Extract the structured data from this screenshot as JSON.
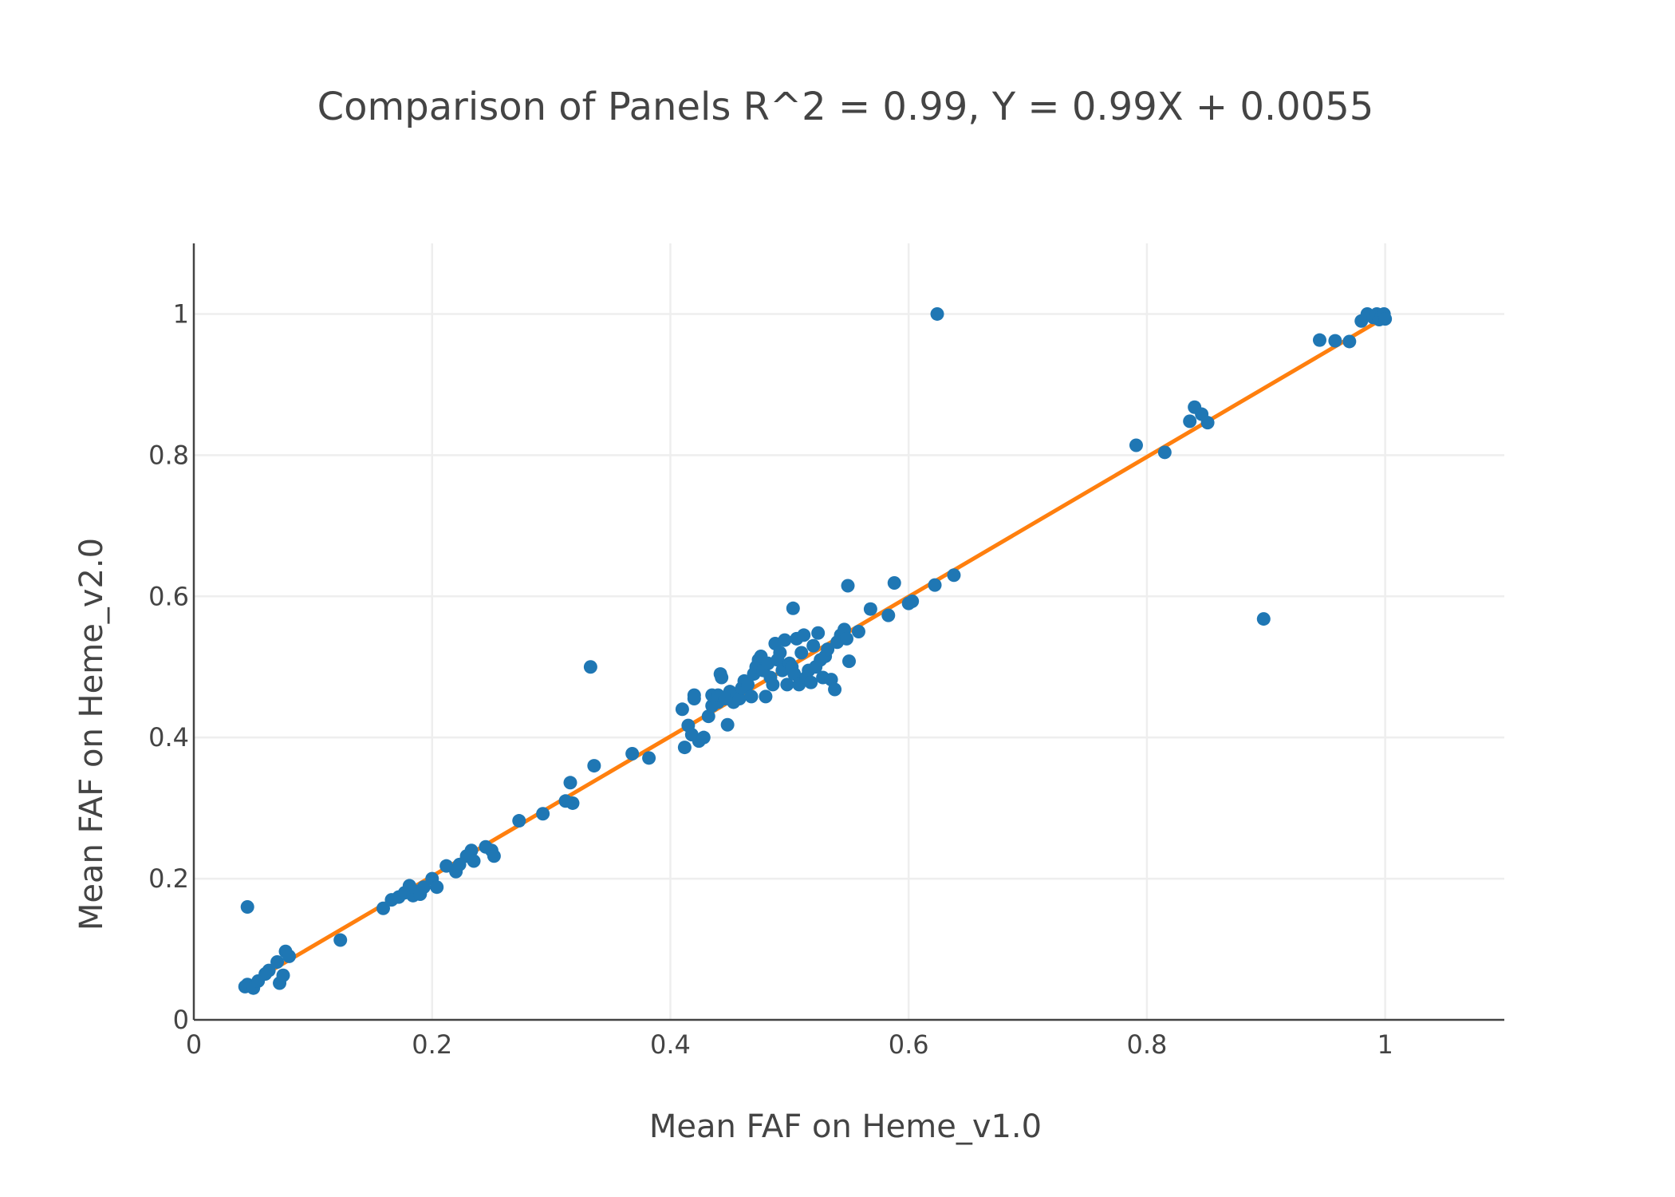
{
  "chart_data": {
    "type": "scatter",
    "title": "Comparison of Panels R^2 = 0.99, Y = 0.99X + 0.0055",
    "xlabel": "Mean FAF on Heme_v1.0",
    "ylabel": "Mean FAF on Heme_v2.0",
    "xlim": [
      0,
      1.1
    ],
    "ylim": [
      0,
      1.1
    ],
    "xticks": [
      0,
      0.2,
      0.4,
      0.6,
      0.8,
      1
    ],
    "yticks": [
      0,
      0.2,
      0.4,
      0.6,
      0.8,
      1
    ],
    "x_tick_labels": [
      "0",
      "0.2",
      "0.4",
      "0.6",
      "0.8",
      "1"
    ],
    "y_tick_labels": [
      "0",
      "0.2",
      "0.4",
      "0.6",
      "0.8",
      "1"
    ],
    "grid": true,
    "legend": "none",
    "colors": {
      "points": "#1f77b4",
      "fit_line": "#ff7f0e"
    },
    "series": [
      {
        "type": "scatter",
        "points": [
          [
            0.043,
            0.047
          ],
          [
            0.045,
            0.05
          ],
          [
            0.05,
            0.045
          ],
          [
            0.054,
            0.055
          ],
          [
            0.06,
            0.065
          ],
          [
            0.063,
            0.07
          ],
          [
            0.07,
            0.082
          ],
          [
            0.072,
            0.052
          ],
          [
            0.075,
            0.063
          ],
          [
            0.077,
            0.097
          ],
          [
            0.08,
            0.09
          ],
          [
            0.045,
            0.16
          ],
          [
            0.123,
            0.113
          ],
          [
            0.159,
            0.158
          ],
          [
            0.166,
            0.17
          ],
          [
            0.172,
            0.174
          ],
          [
            0.177,
            0.18
          ],
          [
            0.181,
            0.19
          ],
          [
            0.184,
            0.176
          ],
          [
            0.187,
            0.182
          ],
          [
            0.19,
            0.178
          ],
          [
            0.193,
            0.188
          ],
          [
            0.2,
            0.2
          ],
          [
            0.204,
            0.188
          ],
          [
            0.212,
            0.218
          ],
          [
            0.22,
            0.21
          ],
          [
            0.223,
            0.22
          ],
          [
            0.229,
            0.232
          ],
          [
            0.233,
            0.24
          ],
          [
            0.235,
            0.225
          ],
          [
            0.245,
            0.245
          ],
          [
            0.25,
            0.24
          ],
          [
            0.252,
            0.232
          ],
          [
            0.273,
            0.282
          ],
          [
            0.293,
            0.292
          ],
          [
            0.312,
            0.31
          ],
          [
            0.316,
            0.336
          ],
          [
            0.318,
            0.307
          ],
          [
            0.333,
            0.5
          ],
          [
            0.336,
            0.36
          ],
          [
            0.368,
            0.377
          ],
          [
            0.382,
            0.371
          ],
          [
            0.41,
            0.44
          ],
          [
            0.412,
            0.386
          ],
          [
            0.415,
            0.417
          ],
          [
            0.418,
            0.404
          ],
          [
            0.42,
            0.455
          ],
          [
            0.42,
            0.46
          ],
          [
            0.424,
            0.395
          ],
          [
            0.428,
            0.4
          ],
          [
            0.432,
            0.43
          ],
          [
            0.435,
            0.445
          ],
          [
            0.435,
            0.46
          ],
          [
            0.44,
            0.45
          ],
          [
            0.44,
            0.46
          ],
          [
            0.442,
            0.49
          ],
          [
            0.443,
            0.485
          ],
          [
            0.446,
            0.455
          ],
          [
            0.448,
            0.418
          ],
          [
            0.45,
            0.465
          ],
          [
            0.453,
            0.45
          ],
          [
            0.456,
            0.46
          ],
          [
            0.458,
            0.455
          ],
          [
            0.46,
            0.47
          ],
          [
            0.462,
            0.48
          ],
          [
            0.465,
            0.475
          ],
          [
            0.468,
            0.458
          ],
          [
            0.47,
            0.49
          ],
          [
            0.472,
            0.5
          ],
          [
            0.474,
            0.51
          ],
          [
            0.476,
            0.515
          ],
          [
            0.478,
            0.495
          ],
          [
            0.48,
            0.458
          ],
          [
            0.482,
            0.505
          ],
          [
            0.484,
            0.485
          ],
          [
            0.486,
            0.475
          ],
          [
            0.488,
            0.533
          ],
          [
            0.49,
            0.51
          ],
          [
            0.492,
            0.52
          ],
          [
            0.494,
            0.495
          ],
          [
            0.496,
            0.538
          ],
          [
            0.498,
            0.475
          ],
          [
            0.5,
            0.505
          ],
          [
            0.502,
            0.5
          ],
          [
            0.503,
            0.583
          ],
          [
            0.504,
            0.49
          ],
          [
            0.506,
            0.54
          ],
          [
            0.508,
            0.475
          ],
          [
            0.51,
            0.52
          ],
          [
            0.512,
            0.545
          ],
          [
            0.514,
            0.485
          ],
          [
            0.516,
            0.495
          ],
          [
            0.518,
            0.478
          ],
          [
            0.52,
            0.53
          ],
          [
            0.522,
            0.5
          ],
          [
            0.524,
            0.548
          ],
          [
            0.526,
            0.51
          ],
          [
            0.528,
            0.485
          ],
          [
            0.53,
            0.515
          ],
          [
            0.532,
            0.525
          ],
          [
            0.535,
            0.482
          ],
          [
            0.538,
            0.468
          ],
          [
            0.54,
            0.535
          ],
          [
            0.543,
            0.545
          ],
          [
            0.546,
            0.553
          ],
          [
            0.548,
            0.54
          ],
          [
            0.549,
            0.615
          ],
          [
            0.55,
            0.508
          ],
          [
            0.558,
            0.55
          ],
          [
            0.568,
            0.582
          ],
          [
            0.583,
            0.573
          ],
          [
            0.588,
            0.619
          ],
          [
            0.6,
            0.59
          ],
          [
            0.603,
            0.593
          ],
          [
            0.622,
            0.616
          ],
          [
            0.624,
            1.0
          ],
          [
            0.638,
            0.63
          ],
          [
            0.791,
            0.814
          ],
          [
            0.815,
            0.804
          ],
          [
            0.836,
            0.848
          ],
          [
            0.84,
            0.868
          ],
          [
            0.846,
            0.858
          ],
          [
            0.851,
            0.846
          ],
          [
            0.898,
            0.568
          ],
          [
            0.945,
            0.963
          ],
          [
            0.958,
            0.962
          ],
          [
            0.97,
            0.961
          ],
          [
            0.98,
            0.99
          ],
          [
            0.985,
            1.0
          ],
          [
            0.99,
            0.995
          ],
          [
            0.993,
            1.0
          ],
          [
            0.995,
            0.992
          ],
          [
            0.997,
            0.998
          ],
          [
            0.999,
            1.0
          ],
          [
            1.0,
            0.993
          ]
        ]
      },
      {
        "type": "line",
        "x": [
          0.043,
          1.0
        ],
        "y": [
          0.0481,
          0.9955
        ]
      }
    ]
  }
}
